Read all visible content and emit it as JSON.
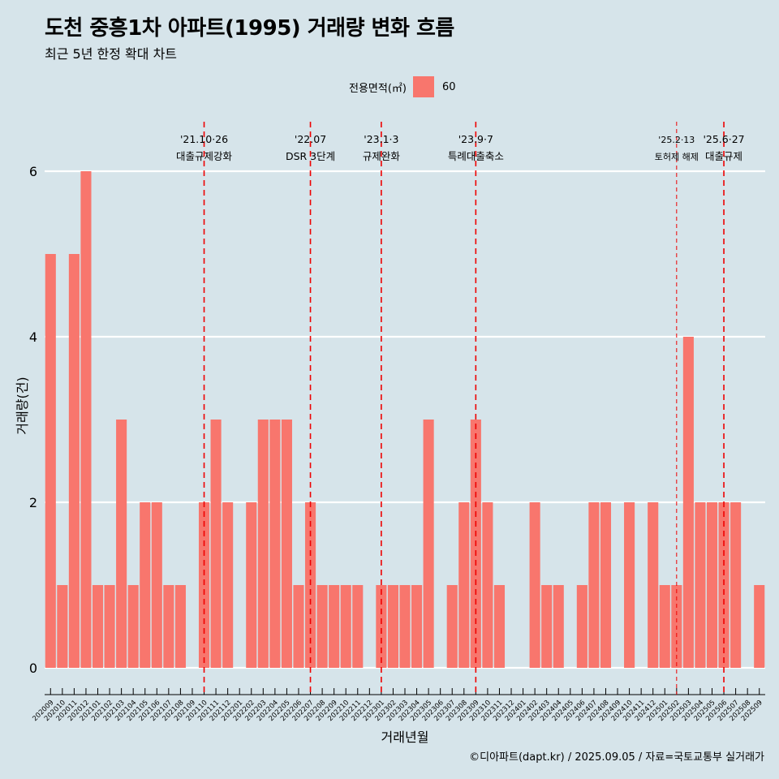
{
  "title": "도천 중흥1차 아파트(1995) 거래량 변화 흐름",
  "subtitle": "최근 5년 한정 확대 차트",
  "legend": {
    "title": "전용면적(㎡)",
    "items": [
      {
        "label": "60",
        "color": "#f8766d"
      }
    ]
  },
  "caption": "©디아파트(dapt.kr) / 2025.09.05 / 자료=국토교통부 실거래가",
  "chart_data": {
    "type": "bar",
    "xlabel": "거래년월",
    "ylabel": "거래량(건)",
    "ylim": [
      0,
      6
    ],
    "yticks": [
      0,
      2,
      4,
      6
    ],
    "grid": true,
    "legend_position": "top",
    "bar_color": "#f8766d",
    "categories": [
      "202009",
      "202010",
      "202011",
      "202012",
      "202101",
      "202102",
      "202103",
      "202104",
      "202105",
      "202106",
      "202107",
      "202108",
      "202109",
      "202110",
      "202111",
      "202112",
      "202201",
      "202202",
      "202203",
      "202204",
      "202205",
      "202206",
      "202207",
      "202208",
      "202209",
      "202210",
      "202211",
      "202212",
      "202301",
      "202302",
      "202303",
      "202304",
      "202305",
      "202306",
      "202307",
      "202308",
      "202309",
      "202310",
      "202311",
      "202312",
      "202401",
      "202402",
      "202403",
      "202404",
      "202405",
      "202406",
      "202407",
      "202408",
      "202409",
      "202410",
      "202411",
      "202412",
      "202501",
      "202502",
      "202503",
      "202504",
      "202505",
      "202506",
      "202507",
      "202508",
      "202509"
    ],
    "series": [
      {
        "name": "60",
        "values": [
          5,
          1,
          5,
          6,
          1,
          1,
          3,
          1,
          2,
          2,
          1,
          1,
          0,
          2,
          3,
          2,
          0,
          2,
          3,
          3,
          3,
          1,
          2,
          1,
          1,
          1,
          1,
          0,
          1,
          1,
          1,
          1,
          3,
          0,
          1,
          2,
          3,
          2,
          1,
          0,
          0,
          2,
          1,
          1,
          0,
          1,
          2,
          2,
          0,
          2,
          0,
          2,
          1,
          1,
          4,
          2,
          2,
          2,
          2,
          0,
          1
        ]
      }
    ],
    "annotations": [
      {
        "x": "202110",
        "label_top": "'21.10·26",
        "label_bottom": "대출규제강화",
        "style": "thick"
      },
      {
        "x": "202207",
        "label_top": "'22.07",
        "label_bottom": "DSR 3단계",
        "style": "thick"
      },
      {
        "x": "202301",
        "label_top": "'23.1·3",
        "label_bottom": "규제완화",
        "style": "thick"
      },
      {
        "x": "202309",
        "label_top": "'23.9·7",
        "label_bottom": "특례대출축소",
        "style": "thick"
      },
      {
        "x": "202502",
        "label_top": "'25.2·13",
        "label_bottom": "토허제 해제",
        "style": "thin"
      },
      {
        "x": "202506",
        "label_top": "'25.6·27",
        "label_bottom": "대출규제",
        "style": "thick"
      }
    ]
  }
}
